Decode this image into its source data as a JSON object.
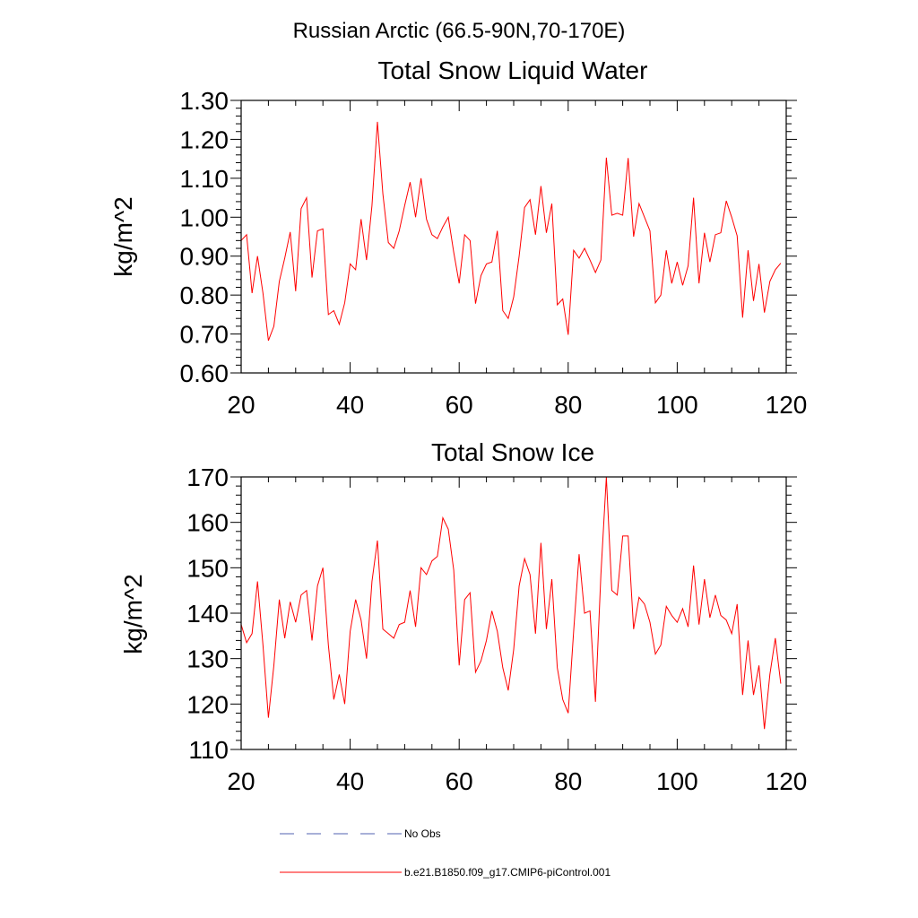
{
  "figure_title": "Russian Arctic (66.5-90N,70-170E)",
  "colors": {
    "model": "#ff0000",
    "obs": "#5060b0"
  },
  "legend": {
    "obs_label": "No Obs",
    "model_label": "b.e21.B1850.f09_g17.CMIP6-piControl.001"
  },
  "chart_data": [
    {
      "type": "line",
      "title": "Total Snow Liquid Water",
      "xlabel": "",
      "ylabel": "kg/m^2",
      "xlim": [
        20,
        120
      ],
      "ylim": [
        0.6,
        1.3
      ],
      "xticks": [
        20,
        40,
        60,
        80,
        100,
        120
      ],
      "xtick_labels": [
        "20",
        "40",
        "60",
        "80",
        "100",
        "120"
      ],
      "yticks": [
        0.6,
        0.7,
        0.8,
        0.9,
        1.0,
        1.1,
        1.2,
        1.3
      ],
      "ytick_labels": [
        "0.60",
        "0.70",
        "0.80",
        "0.90",
        "1.00",
        "1.10",
        "1.20",
        "1.30"
      ],
      "series": [
        {
          "name": "b.e21.B1850.f09_g17.CMIP6-piControl.001",
          "color": "#ff0000",
          "x": [
            20,
            21,
            22,
            23,
            24,
            25,
            26,
            27,
            28,
            29,
            30,
            31,
            32,
            33,
            34,
            35,
            36,
            37,
            38,
            39,
            40,
            41,
            42,
            43,
            44,
            45,
            46,
            47,
            48,
            49,
            50,
            51,
            52,
            53,
            54,
            55,
            56,
            57,
            58,
            59,
            60,
            61,
            62,
            63,
            64,
            65,
            66,
            67,
            68,
            69,
            70,
            71,
            72,
            73,
            74,
            75,
            76,
            77,
            78,
            79,
            80,
            81,
            82,
            83,
            84,
            85,
            86,
            87,
            88,
            89,
            90,
            91,
            92,
            93,
            94,
            95,
            96,
            97,
            98,
            99,
            100,
            101,
            102,
            103,
            104,
            105,
            106,
            107,
            108,
            109,
            110,
            111,
            112,
            113,
            114,
            115,
            116,
            117,
            118,
            119
          ],
          "values": [
            0.94,
            0.955,
            0.805,
            0.9,
            0.805,
            0.683,
            0.72,
            0.835,
            0.895,
            0.962,
            0.81,
            1.022,
            1.05,
            0.845,
            0.965,
            0.97,
            0.75,
            0.76,
            0.725,
            0.78,
            0.88,
            0.865,
            0.995,
            0.89,
            1.03,
            1.245,
            1.06,
            0.935,
            0.92,
            0.965,
            1.03,
            1.09,
            1.0,
            1.1,
            0.995,
            0.955,
            0.945,
            0.975,
            1.0,
            0.91,
            0.83,
            0.955,
            0.94,
            0.778,
            0.85,
            0.88,
            0.885,
            0.965,
            0.76,
            0.74,
            0.795,
            0.9,
            1.025,
            1.045,
            0.955,
            1.08,
            0.96,
            1.035,
            0.775,
            0.79,
            0.698,
            0.915,
            0.895,
            0.92,
            0.89,
            0.858,
            0.89,
            1.153,
            1.005,
            1.01,
            1.005,
            1.152,
            0.95,
            1.035,
            1.0,
            0.965,
            0.78,
            0.8,
            0.915,
            0.83,
            0.885,
            0.825,
            0.875,
            1.05,
            0.83,
            0.96,
            0.885,
            0.955,
            0.96,
            1.042,
            1.0,
            0.952,
            0.742,
            0.915,
            0.785,
            0.88,
            0.755,
            0.835,
            0.865,
            0.882
          ]
        }
      ]
    },
    {
      "type": "line",
      "title": "Total Snow Ice",
      "xlabel": "",
      "ylabel": "kg/m^2",
      "xlim": [
        20,
        120
      ],
      "ylim": [
        110,
        170
      ],
      "xticks": [
        20,
        40,
        60,
        80,
        100,
        120
      ],
      "xtick_labels": [
        "20",
        "40",
        "60",
        "80",
        "100",
        "120"
      ],
      "yticks": [
        110,
        120,
        130,
        140,
        150,
        160,
        170
      ],
      "ytick_labels": [
        "110",
        "120",
        "130",
        "140",
        "150",
        "160",
        "170"
      ],
      "series": [
        {
          "name": "b.e21.B1850.f09_g17.CMIP6-piControl.001",
          "color": "#ff0000",
          "x": [
            20,
            21,
            22,
            23,
            24,
            25,
            26,
            27,
            28,
            29,
            30,
            31,
            32,
            33,
            34,
            35,
            36,
            37,
            38,
            39,
            40,
            41,
            42,
            43,
            44,
            45,
            46,
            47,
            48,
            49,
            50,
            51,
            52,
            53,
            54,
            55,
            56,
            57,
            58,
            59,
            60,
            61,
            62,
            63,
            64,
            65,
            66,
            67,
            68,
            69,
            70,
            71,
            72,
            73,
            74,
            75,
            76,
            77,
            78,
            79,
            80,
            81,
            82,
            83,
            84,
            85,
            86,
            87,
            88,
            89,
            90,
            91,
            92,
            93,
            94,
            95,
            96,
            97,
            98,
            99,
            100,
            101,
            102,
            103,
            104,
            105,
            106,
            107,
            108,
            109,
            110,
            111,
            112,
            113,
            114,
            115,
            116,
            117,
            118,
            119
          ],
          "values": [
            137.5,
            133.5,
            135.5,
            147,
            133,
            117,
            128.5,
            143,
            134.5,
            142.5,
            138,
            144,
            145,
            134,
            146,
            150,
            133,
            121,
            126.5,
            120,
            136,
            143,
            138.5,
            130,
            147,
            156,
            136.5,
            135.5,
            134.5,
            137.5,
            138,
            145,
            137,
            150,
            148.5,
            151.5,
            152.5,
            161,
            158.5,
            149.5,
            128.5,
            143,
            144.5,
            127,
            129.5,
            134,
            140.5,
            136,
            128,
            123,
            132,
            146,
            152,
            148.5,
            135.5,
            155.5,
            136.5,
            147.5,
            128,
            121,
            118,
            136,
            153,
            140,
            140.5,
            120.5,
            148.5,
            170,
            145,
            144,
            157,
            157,
            136.5,
            143.5,
            142,
            138,
            131,
            133,
            141.5,
            139.5,
            138,
            141,
            137,
            150.5,
            137.5,
            147.5,
            139,
            144,
            139.5,
            138.5,
            135.5,
            142,
            122,
            134,
            122,
            128.5,
            114.5,
            126.5,
            134.5,
            124.5
          ]
        }
      ]
    }
  ]
}
